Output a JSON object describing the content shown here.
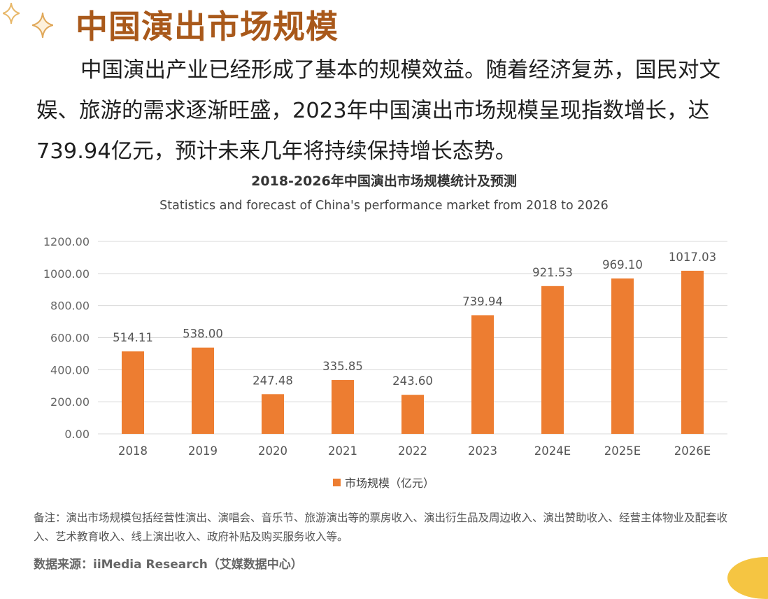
{
  "heading": "中国演出市场规模",
  "intro": "中国演出产业已经形成了基本的规模效益。随着经济复苏，国民对文娱、旅游的需求逐渐旺盛，2023年中国演出市场规模呈现指数增长，达739.94亿元，预计未来几年将持续保持增长态势。",
  "colors": {
    "heading": "#a9591b",
    "bar": "#ed7d31",
    "grid": "#d9d9d9",
    "sparkle": "#e8b86a"
  },
  "chart_data": {
    "type": "bar",
    "title": "2018-2026年中国演出市场规模统计及预测",
    "subtitle": "Statistics and forecast of China's performance market from 2018 to 2026",
    "categories": [
      "2018",
      "2019",
      "2020",
      "2021",
      "2022",
      "2023",
      "2024E",
      "2025E",
      "2026E"
    ],
    "series": [
      {
        "name": "市场规模（亿元）",
        "values": [
          514.11,
          538.0,
          247.48,
          335.85,
          243.6,
          739.94,
          921.53,
          969.1,
          1017.03
        ],
        "labels": [
          "514.11",
          "538.00",
          "247.48",
          "335.85",
          "243.60",
          "739.94",
          "921.53",
          "969.10",
          "1017.03"
        ]
      }
    ],
    "ylim": [
      0,
      1200
    ],
    "yticks": [
      "0.00",
      "200.00",
      "400.00",
      "600.00",
      "800.00",
      "1000.00",
      "1200.00"
    ],
    "ytick_values": [
      0,
      200,
      400,
      600,
      800,
      1000,
      1200
    ],
    "grid": true,
    "legend": "bottom",
    "xlabel": "",
    "ylabel": ""
  },
  "note": "备注：演出市场规模包括经营性演出、演唱会、音乐节、旅游演出等的票房收入、演出衍生品及周边收入、演出赞助收入、经营主体物业及配套收入、艺术教育收入、线上演出收入、政府补贴及购买服务收入等。",
  "source": "数据来源：iiMedia Research（艾媒数据中心）"
}
